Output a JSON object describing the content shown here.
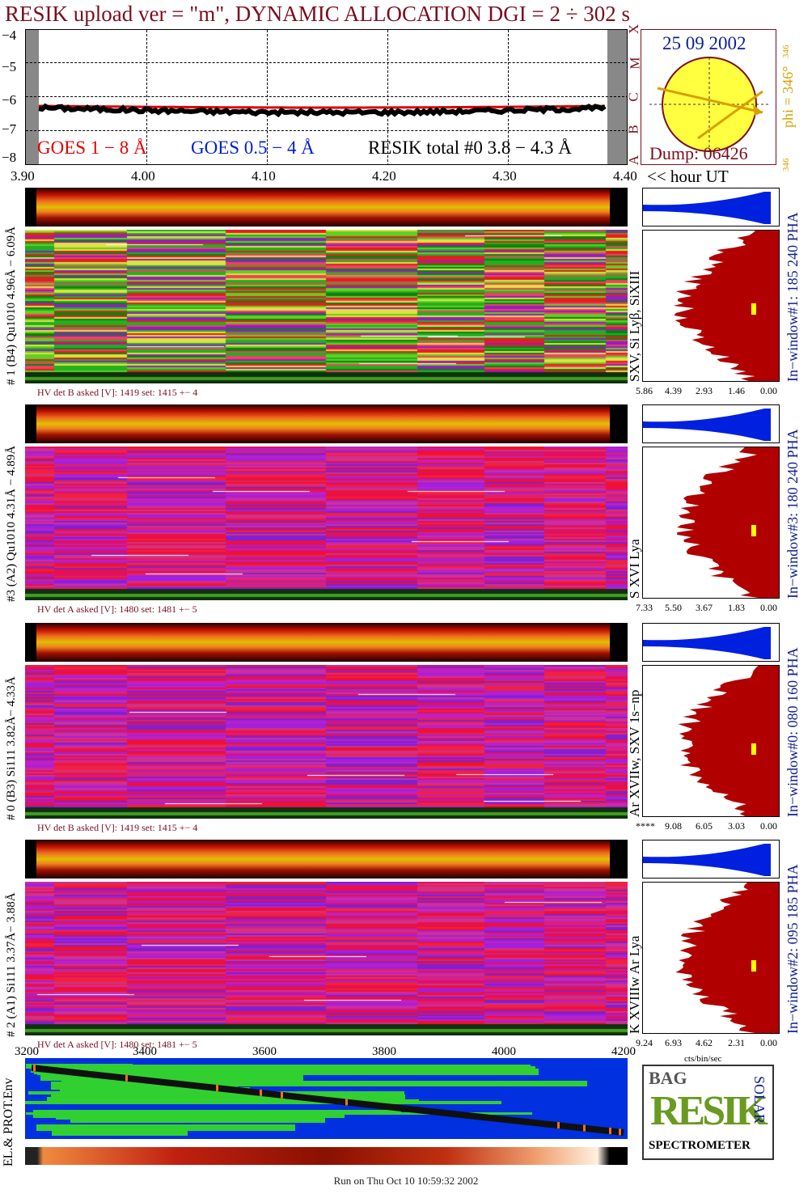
{
  "title": "RESIK upload ver = \"m\", DYNAMIC ALLOCATION  DGI =   2 ÷ 302 s",
  "goes_panel": {
    "y_ticks": [
      "−4",
      "−5",
      "−6",
      "−7",
      "−8"
    ],
    "class_letters": [
      "X",
      "M",
      "C",
      "B",
      "A"
    ],
    "legend_goes_long": "GOES 1 − 8 Å",
    "legend_goes_short": "GOES 0.5 − 4 Å",
    "legend_resik": "RESIK total #0  3.8 − 4.3 Å",
    "x_ticks": [
      "3.90",
      "4.00",
      "4.10",
      "4.20",
      "4.30",
      "4.40"
    ],
    "x_axis_note": "<< hour UT",
    "colors": {
      "goes_long": "#e00000",
      "goes_short": "#0020d0",
      "resik": "#000000"
    }
  },
  "sun_box": {
    "date": "25 09 2002",
    "phi_label": "phi = 346°",
    "phi_small_top": "346",
    "phi_small_bottom": "346",
    "dump": "Dump: 06426"
  },
  "channels": [
    {
      "left_label": "# 1 (B4) Qu1010 4.96Å − 6.09Å",
      "line_label": "SXV, Si Lyβ, SiXIII",
      "right_label": "In−window#1:  185 240 PHA",
      "hv": "HV det B asked [V]:  1419 set:  1415  +−    4",
      "pha_ticks": [
        "5.86",
        "4.39",
        "2.93",
        "1.46",
        "0.00"
      ],
      "theme": "green"
    },
    {
      "left_label": "#3 (A2) Qu1010  4.31Å − 4.89Å",
      "line_label": "S XVI Lya",
      "right_label": "In−window#3:  180 240 PHA",
      "hv": "HV det A asked [V]:  1480 set:  1481  +−    5",
      "pha_ticks": [
        "7.33",
        "5.50",
        "3.67",
        "1.83",
        "0.00"
      ],
      "theme": "magenta"
    },
    {
      "left_label": "# 0 (B3) Si111  3.82Å− 4.33Å",
      "line_label": "Ar XVIIw, SXV 1s−np",
      "right_label": "In−window#0:  080 160 PHA",
      "hv": "HV det B asked [V]:  1419 set:  1415  +−    4",
      "pha_ticks": [
        "****",
        "9.08",
        "6.05",
        "3.03",
        "0.00"
      ],
      "theme": "magenta"
    },
    {
      "left_label": "# 2 (A1) Si111  3.37Å− 3.88Å",
      "line_label": "K XVIIIw  Ar Lya",
      "right_label": "In−window#2:  095 185 PHA",
      "hv": "HV det A asked [V]:  1480 set:  1481  +−    5",
      "pha_ticks": [
        "9.24",
        "6.93",
        "4.62",
        "2.31",
        "0.00"
      ],
      "theme": "magenta"
    }
  ],
  "pha_unit": "cts/bin/sec",
  "bottom_axis": {
    "ticks": [
      "3200",
      "3400",
      "3600",
      "3800",
      "4000",
      "4200"
    ],
    "env_label": "EL.& PROT.Env"
  },
  "logo": {
    "top_letters": "BAG",
    "main": "RESIK",
    "side": "SOLAR",
    "bottom": "SPECTROMETER"
  },
  "footer": "Run on Thu Oct 10 10:59:32 2002"
}
